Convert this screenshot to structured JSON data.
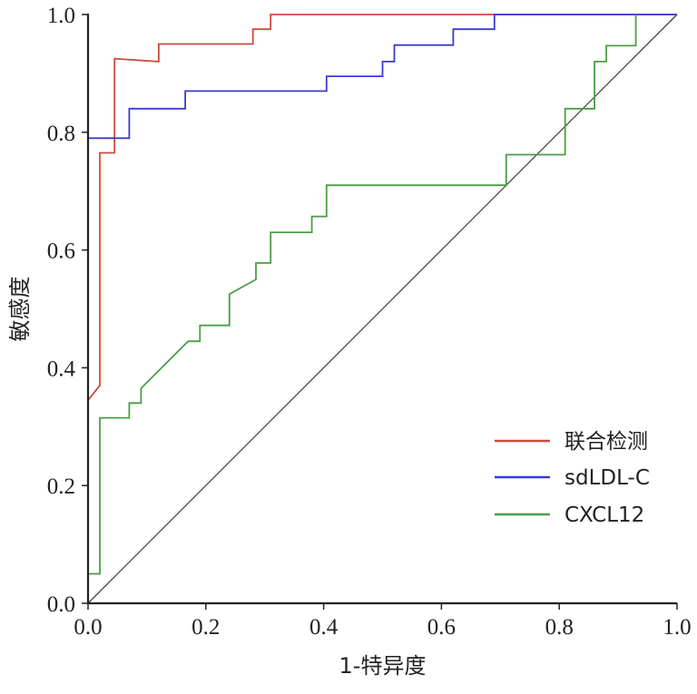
{
  "chart_data": {
    "type": "line",
    "title": "",
    "xlabel": "1-特异度",
    "ylabel": "敏感度",
    "xlim": [
      0,
      1
    ],
    "ylim": [
      0,
      1
    ],
    "x_ticks": [
      "0.0",
      "0.2",
      "0.4",
      "0.6",
      "0.8",
      "1.0"
    ],
    "y_ticks": [
      "0.0",
      "0.2",
      "0.4",
      "0.6",
      "0.8",
      "1.0"
    ],
    "legend_position": "bottom-right",
    "reference_line": {
      "x": [
        0,
        1
      ],
      "y": [
        0,
        1
      ],
      "color": "#444444"
    },
    "series": [
      {
        "name": "联合检测",
        "color": "#cc4a3c",
        "x": [
          0,
          0.02,
          0.02,
          0.045,
          0.045,
          0.12,
          0.12,
          0.28,
          0.28,
          0.31,
          0.31,
          0.97,
          1.0
        ],
        "y": [
          0.345,
          0.37,
          0.765,
          0.765,
          0.925,
          0.92,
          0.95,
          0.95,
          0.975,
          0.975,
          1.0,
          1.0,
          1.0
        ]
      },
      {
        "name": "sdLDL-C",
        "color": "#3a3ad6",
        "x": [
          0,
          0.07,
          0.07,
          0.165,
          0.165,
          0.405,
          0.405,
          0.5,
          0.5,
          0.52,
          0.52,
          0.62,
          0.62,
          0.69,
          0.69,
          1.0
        ],
        "y": [
          0.79,
          0.79,
          0.84,
          0.84,
          0.87,
          0.87,
          0.895,
          0.895,
          0.92,
          0.92,
          0.948,
          0.948,
          0.975,
          0.975,
          1.0,
          1.0
        ]
      },
      {
        "name": "CXCL12",
        "color": "#4a9e45",
        "x": [
          0,
          0.02,
          0.02,
          0.07,
          0.07,
          0.09,
          0.09,
          0.17,
          0.19,
          0.19,
          0.24,
          0.24,
          0.285,
          0.285,
          0.31,
          0.31,
          0.38,
          0.38,
          0.405,
          0.405,
          0.71,
          0.71,
          0.81,
          0.81,
          0.86,
          0.86,
          0.88,
          0.88,
          0.93,
          0.93
        ],
        "y": [
          0.05,
          0.05,
          0.315,
          0.315,
          0.34,
          0.34,
          0.365,
          0.445,
          0.445,
          0.472,
          0.472,
          0.525,
          0.55,
          0.578,
          0.578,
          0.63,
          0.63,
          0.657,
          0.657,
          0.71,
          0.71,
          0.762,
          0.762,
          0.84,
          0.84,
          0.92,
          0.92,
          0.947,
          0.947,
          1.0
        ]
      }
    ]
  }
}
